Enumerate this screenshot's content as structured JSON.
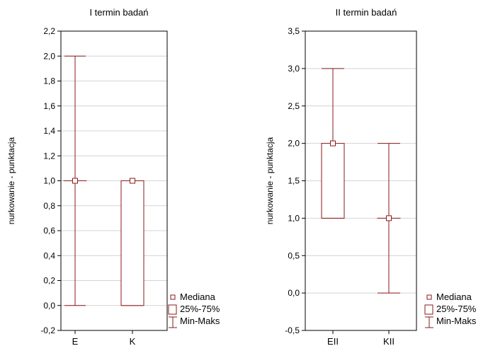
{
  "chart_data": [
    {
      "type": "box",
      "title": "I termin badań",
      "xlabel": "",
      "ylabel": "nurkowanie - punktacja",
      "ylim": [
        -0.2,
        2.2
      ],
      "ytick_step": 0.2,
      "yticks": [
        "-0,2",
        "0,0",
        "0,2",
        "0,4",
        "0,6",
        "0,8",
        "1,0",
        "1,2",
        "1,4",
        "1,6",
        "1,8",
        "2,0",
        "2,2"
      ],
      "grid": true,
      "categories": [
        "E",
        "K"
      ],
      "boxes": [
        {
          "label": "E",
          "median": 1.0,
          "q1": 1.0,
          "q3": 1.0,
          "min": 0.0,
          "max": 2.0
        },
        {
          "label": "K",
          "median": 1.0,
          "q1": 0.0,
          "q3": 1.0,
          "min": 0.0,
          "max": 1.0
        }
      ],
      "legend": [
        "Mediana",
        "25%-75%",
        "Min-Maks"
      ],
      "legend_position": "bottom-right"
    },
    {
      "type": "box",
      "title": "II termin badań",
      "xlabel": "",
      "ylabel": "nurkowanie - punktacja",
      "ylim": [
        -0.5,
        3.5
      ],
      "ytick_step": 0.5,
      "yticks": [
        "-0,5",
        "0,0",
        "0,5",
        "1,0",
        "1,5",
        "2,0",
        "2,5",
        "3,0",
        "3,5"
      ],
      "grid": true,
      "categories": [
        "EII",
        "KII"
      ],
      "boxes": [
        {
          "label": "EII",
          "median": 2.0,
          "q1": 1.0,
          "q3": 2.0,
          "min": 1.0,
          "max": 3.0
        },
        {
          "label": "KII",
          "median": 1.0,
          "q1": 1.0,
          "q3": 1.0,
          "min": 0.0,
          "max": 2.0
        }
      ],
      "legend": [
        "Mediana",
        "25%-75%",
        "Min-Maks"
      ],
      "legend_position": "bottom-right"
    }
  ],
  "colors": {
    "series": "#8b1a1a",
    "grid": "#d4d4d4",
    "axis": "#000000"
  }
}
